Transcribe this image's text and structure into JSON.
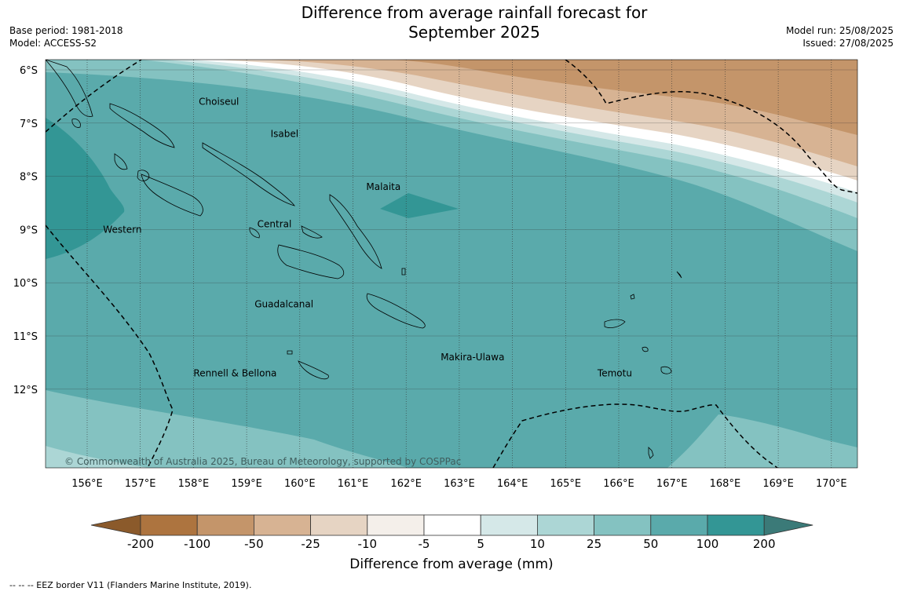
{
  "title_line1": "Difference from average rainfall forecast for",
  "title_line2": "September 2025",
  "meta_left": [
    "Base period: 1981-2018",
    "Model: ACCESS-S2"
  ],
  "meta_right": [
    "Model run: 25/08/2025",
    "Issued: 27/08/2025"
  ],
  "lat_labels": [
    "6°S",
    "7°S",
    "8°S",
    "9°S",
    "10°S",
    "11°S",
    "12°S"
  ],
  "lon_labels": [
    "156°E",
    "157°E",
    "158°E",
    "159°E",
    "160°E",
    "161°E",
    "162°E",
    "163°E",
    "164°E",
    "165°E",
    "166°E",
    "167°E",
    "168°E",
    "169°E",
    "170°E"
  ],
  "places": [
    {
      "name": "Choiseul",
      "lon": 158.1,
      "lat": -6.6
    },
    {
      "name": "Isabel",
      "lon": 159.45,
      "lat": -7.2
    },
    {
      "name": "Malaita",
      "lon": 161.25,
      "lat": -8.2
    },
    {
      "name": "Western",
      "lon": 156.3,
      "lat": -9.0
    },
    {
      "name": "Central",
      "lon": 159.2,
      "lat": -8.9
    },
    {
      "name": "Guadalcanal",
      "lon": 159.15,
      "lat": -10.4
    },
    {
      "name": "Makira-Ulawa",
      "lon": 162.65,
      "lat": -11.4
    },
    {
      "name": "Rennell & Bellona",
      "lon": 158.0,
      "lat": -11.7
    },
    {
      "name": "Temotu",
      "lon": 165.6,
      "lat": -11.7
    }
  ],
  "copyright": "© Commonwealth of Australia 2025, Bureau of Meteorology, supported by COSPPac",
  "colorbar": {
    "colors": [
      "#ad743f",
      "#c4956a",
      "#d7b393",
      "#e6d4c3",
      "#f4efea",
      "#ffffff",
      "#d5e8e8",
      "#acd6d5",
      "#84c2c1",
      "#5aaaab",
      "#339695"
    ],
    "end_low": "#8b5a2b",
    "end_high": "#3b7a78",
    "ticks": [
      "-200",
      "-100",
      "-50",
      "-25",
      "-10",
      "-5",
      "5",
      "10",
      "25",
      "50",
      "100",
      "200"
    ],
    "label": "Difference from average (mm)"
  },
  "footnote": "--  --  -- EEZ border V11 (Flanders Marine Institute, 2019).",
  "map_colors": {
    "base": "#5aaaab",
    "strong_wet": "#339695",
    "band_25_50": "#84c2c1",
    "band_10_25": "#acd6d5",
    "band_5_10": "#d5e8e8",
    "band_neutral": "#ffffff",
    "band_dry_10": "#e6d4c3",
    "band_dry_25": "#d7b393",
    "band_dry_50": "#c4956a"
  }
}
